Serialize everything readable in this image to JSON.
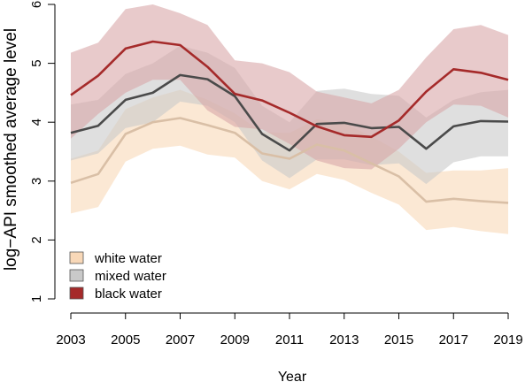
{
  "chart_data": {
    "type": "line",
    "title": "",
    "xlabel": "Year",
    "ylabel": "log−API smoothed average level",
    "xlim": [
      2003,
      2019
    ],
    "ylim": [
      1,
      6
    ],
    "x_ticks": [
      "2003",
      "2005",
      "2007",
      "2009",
      "2011",
      "2013",
      "2015",
      "2017",
      "2019"
    ],
    "y_ticks": [
      "1",
      "2",
      "3",
      "4",
      "5",
      "6"
    ],
    "x": [
      2003,
      2004,
      2005,
      2006,
      2007,
      2008,
      2009,
      2010,
      2011,
      2012,
      2013,
      2014,
      2015,
      2016,
      2017,
      2018,
      2019
    ],
    "legend_position": "bottom-left",
    "series": [
      {
        "name": "white water",
        "line_color": "#d9bfa6",
        "band_color": "#f8d8b8",
        "values": [
          2.97,
          3.12,
          3.8,
          4.0,
          4.07,
          3.95,
          3.82,
          3.47,
          3.38,
          3.62,
          3.52,
          3.3,
          3.08,
          2.65,
          2.7,
          2.66,
          2.63
        ],
        "lower": [
          2.45,
          2.56,
          3.33,
          3.55,
          3.6,
          3.45,
          3.4,
          3.0,
          2.86,
          3.12,
          3.02,
          2.8,
          2.6,
          2.17,
          2.22,
          2.15,
          2.1
        ],
        "upper": [
          3.38,
          3.52,
          4.22,
          4.42,
          4.55,
          4.38,
          4.15,
          3.83,
          3.82,
          4.05,
          3.98,
          3.76,
          3.5,
          3.14,
          3.18,
          3.18,
          3.22
        ]
      },
      {
        "name": "mixed water",
        "line_color": "#4a4a4a",
        "band_color": "#c9c9c9",
        "values": [
          3.82,
          3.94,
          4.38,
          4.5,
          4.8,
          4.73,
          4.44,
          3.8,
          3.52,
          3.97,
          3.99,
          3.9,
          3.92,
          3.55,
          3.93,
          4.02,
          4.01
        ],
        "lower": [
          3.35,
          3.47,
          3.9,
          4.0,
          4.35,
          4.28,
          4.0,
          3.35,
          3.05,
          3.37,
          3.37,
          3.27,
          3.3,
          2.95,
          3.32,
          3.42,
          3.42
        ],
        "upper": [
          4.3,
          4.38,
          4.82,
          5.0,
          5.3,
          5.18,
          4.92,
          4.28,
          4.0,
          4.53,
          4.57,
          4.48,
          4.45,
          4.08,
          4.38,
          4.51,
          4.55
        ]
      },
      {
        "name": "black water",
        "line_color": "#a52a2a",
        "band_color": "#d8a6a8",
        "values": [
          4.46,
          4.79,
          5.25,
          5.37,
          5.31,
          4.94,
          4.48,
          4.37,
          4.16,
          3.93,
          3.78,
          3.75,
          4.03,
          4.52,
          4.9,
          4.84,
          4.72
        ],
        "lower": [
          3.72,
          4.14,
          4.5,
          4.72,
          4.72,
          4.2,
          3.92,
          3.88,
          3.63,
          3.35,
          3.22,
          3.2,
          3.55,
          4.0,
          4.3,
          4.28,
          4.08
        ],
        "upper": [
          5.18,
          5.35,
          5.92,
          6.0,
          5.85,
          5.65,
          5.05,
          5.0,
          4.85,
          4.52,
          4.42,
          4.32,
          4.55,
          5.1,
          5.58,
          5.65,
          5.48
        ]
      }
    ]
  }
}
